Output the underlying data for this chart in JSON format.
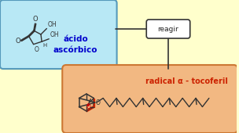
{
  "bg_color": "#ffffcc",
  "ascorbic_box_color": "#b8e8f5",
  "ascorbic_box_edge": "#5599bb",
  "tocopheryl_box_color": "#f2b882",
  "tocopheryl_box_edge": "#cc7733",
  "reagir_box_color": "#ffffff",
  "reagir_box_edge": "#333333",
  "text_ascorbic_color": "#0000cc",
  "text_tocopheryl_color": "#cc2200",
  "text_reagir_color": "#222222",
  "label_ascorbic": "ácido\nascórbico",
  "label_tocopheryl": "radical α - tocoferil",
  "label_reagir": "reagir",
  "bond_color": "#333333",
  "oxygen_color": "#333333",
  "radical_dot_color": "#cc0000",
  "double_bond_color": "#cc2200"
}
